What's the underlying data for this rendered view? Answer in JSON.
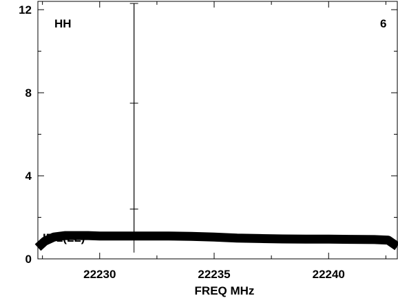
{
  "chart_data": {
    "type": "line",
    "xlabel": "FREQ MHz",
    "ylabel": "",
    "xlim": [
      22227.3,
      22243.0
    ],
    "ylim": [
      0,
      12.4
    ],
    "xticks": [
      22230,
      22235,
      22240
    ],
    "yticks": [
      0,
      4,
      8,
      12
    ],
    "grid": false,
    "annotations": {
      "top_left": "HH",
      "top_right": "6",
      "bottom_left": "IF 1(LL)"
    },
    "series": [
      {
        "color": "#000000",
        "x": [
          22227.3,
          22227.6,
          22228.0,
          22228.5,
          22229.0,
          22229.5,
          22230.0,
          22230.5,
          22231.0,
          22231.4,
          22231.5,
          22231.6,
          22232.0,
          22233.0,
          22234.0,
          22235.0,
          22236.0,
          22237.0,
          22238.0,
          22239.0,
          22240.0,
          22241.0,
          22242.0,
          22242.6,
          22243.0
        ],
        "y": [
          0.55,
          0.85,
          1.05,
          1.12,
          1.12,
          1.12,
          1.1,
          1.1,
          1.1,
          1.1,
          12.3,
          1.1,
          1.1,
          1.1,
          1.08,
          1.05,
          1.0,
          0.98,
          0.96,
          0.95,
          0.95,
          0.94,
          0.93,
          0.9,
          0.6
        ]
      }
    ],
    "errorbar": {
      "x": 22231.5,
      "y_low": 0.3,
      "y_high": 12.3,
      "marks": [
        2.4,
        7.5,
        12.3
      ]
    }
  }
}
